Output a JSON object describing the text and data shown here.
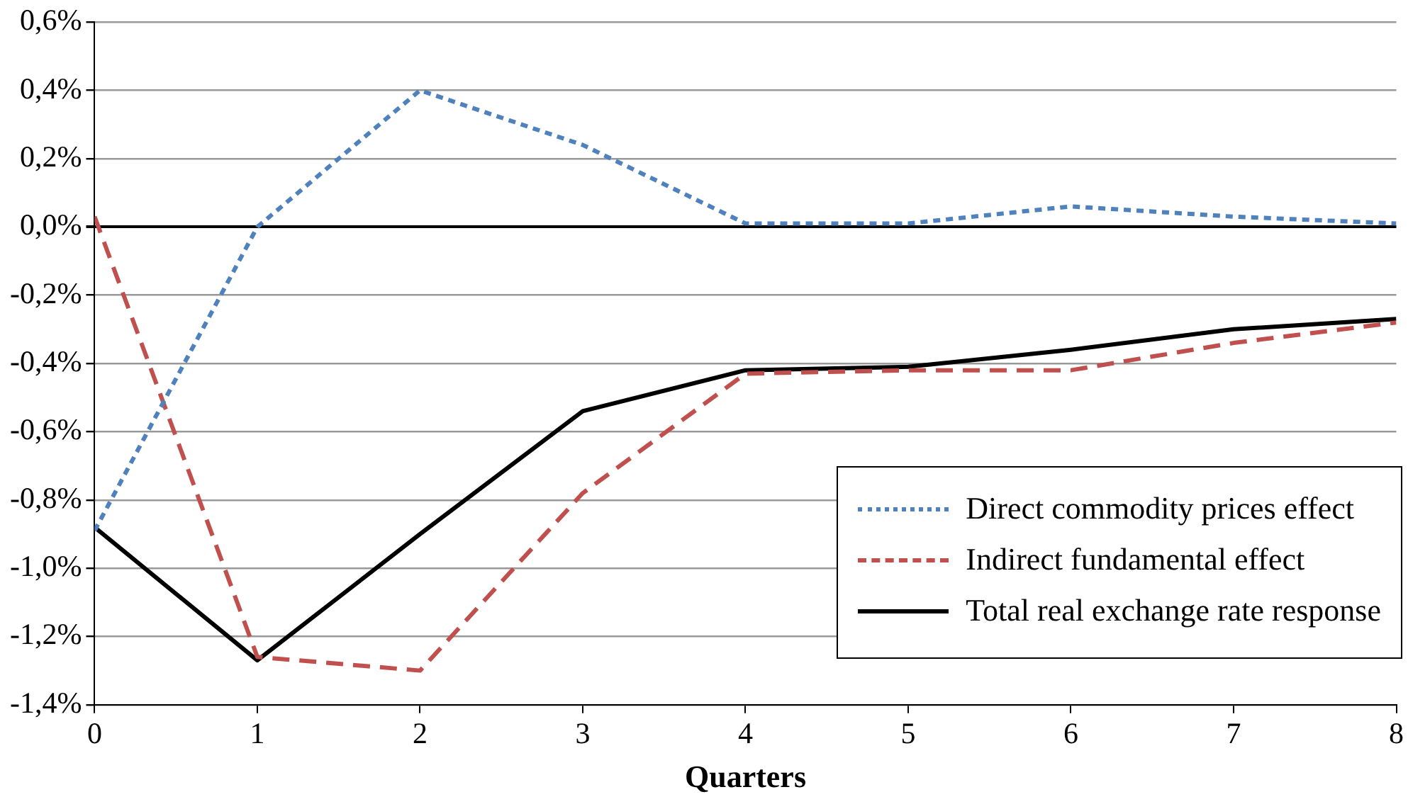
{
  "chart_data": {
    "type": "line",
    "xlabel": "Quarters",
    "x": [
      0,
      1,
      2,
      3,
      4,
      5,
      6,
      7,
      8
    ],
    "series": [
      {
        "name": "Direct commodity prices effect",
        "color": "#4f81bd",
        "line_style": "dotted",
        "values": [
          -0.89,
          0.0,
          0.4,
          0.24,
          0.01,
          0.01,
          0.06,
          0.03,
          0.01
        ]
      },
      {
        "name": "Indirect fundamental effect",
        "color": "#c0504d",
        "line_style": "dashed",
        "values": [
          0.03,
          -1.26,
          -1.3,
          -0.78,
          -0.43,
          -0.42,
          -0.42,
          -0.34,
          -0.28
        ]
      },
      {
        "name": "Total real exchange rate response",
        "color": "#000000",
        "line_style": "solid",
        "values": [
          -0.88,
          -1.27,
          -0.9,
          -0.54,
          -0.42,
          -0.41,
          -0.36,
          -0.3,
          -0.27
        ]
      }
    ],
    "xlim": [
      0,
      8
    ],
    "xticks": [
      0,
      1,
      2,
      3,
      4,
      5,
      6,
      7,
      8
    ],
    "ylim": [
      -1.4,
      0.6
    ],
    "yticks": [
      {
        "value": -1.4,
        "label": "-1,4%"
      },
      {
        "value": -1.2,
        "label": "-1,2%"
      },
      {
        "value": -1.0,
        "label": "-1,0%"
      },
      {
        "value": -0.8,
        "label": "-0,8%"
      },
      {
        "value": -0.6,
        "label": "-0,6%"
      },
      {
        "value": -0.4,
        "label": "-0,4%"
      },
      {
        "value": -0.2,
        "label": "-0,2%"
      },
      {
        "value": 0.0,
        "label": "0,0%"
      },
      {
        "value": 0.2,
        "label": "0,2%"
      },
      {
        "value": 0.4,
        "label": "0,4%"
      },
      {
        "value": 0.6,
        "label": "0,6%"
      }
    ],
    "grid": "y",
    "legend": "bottom right",
    "marker": "none"
  }
}
